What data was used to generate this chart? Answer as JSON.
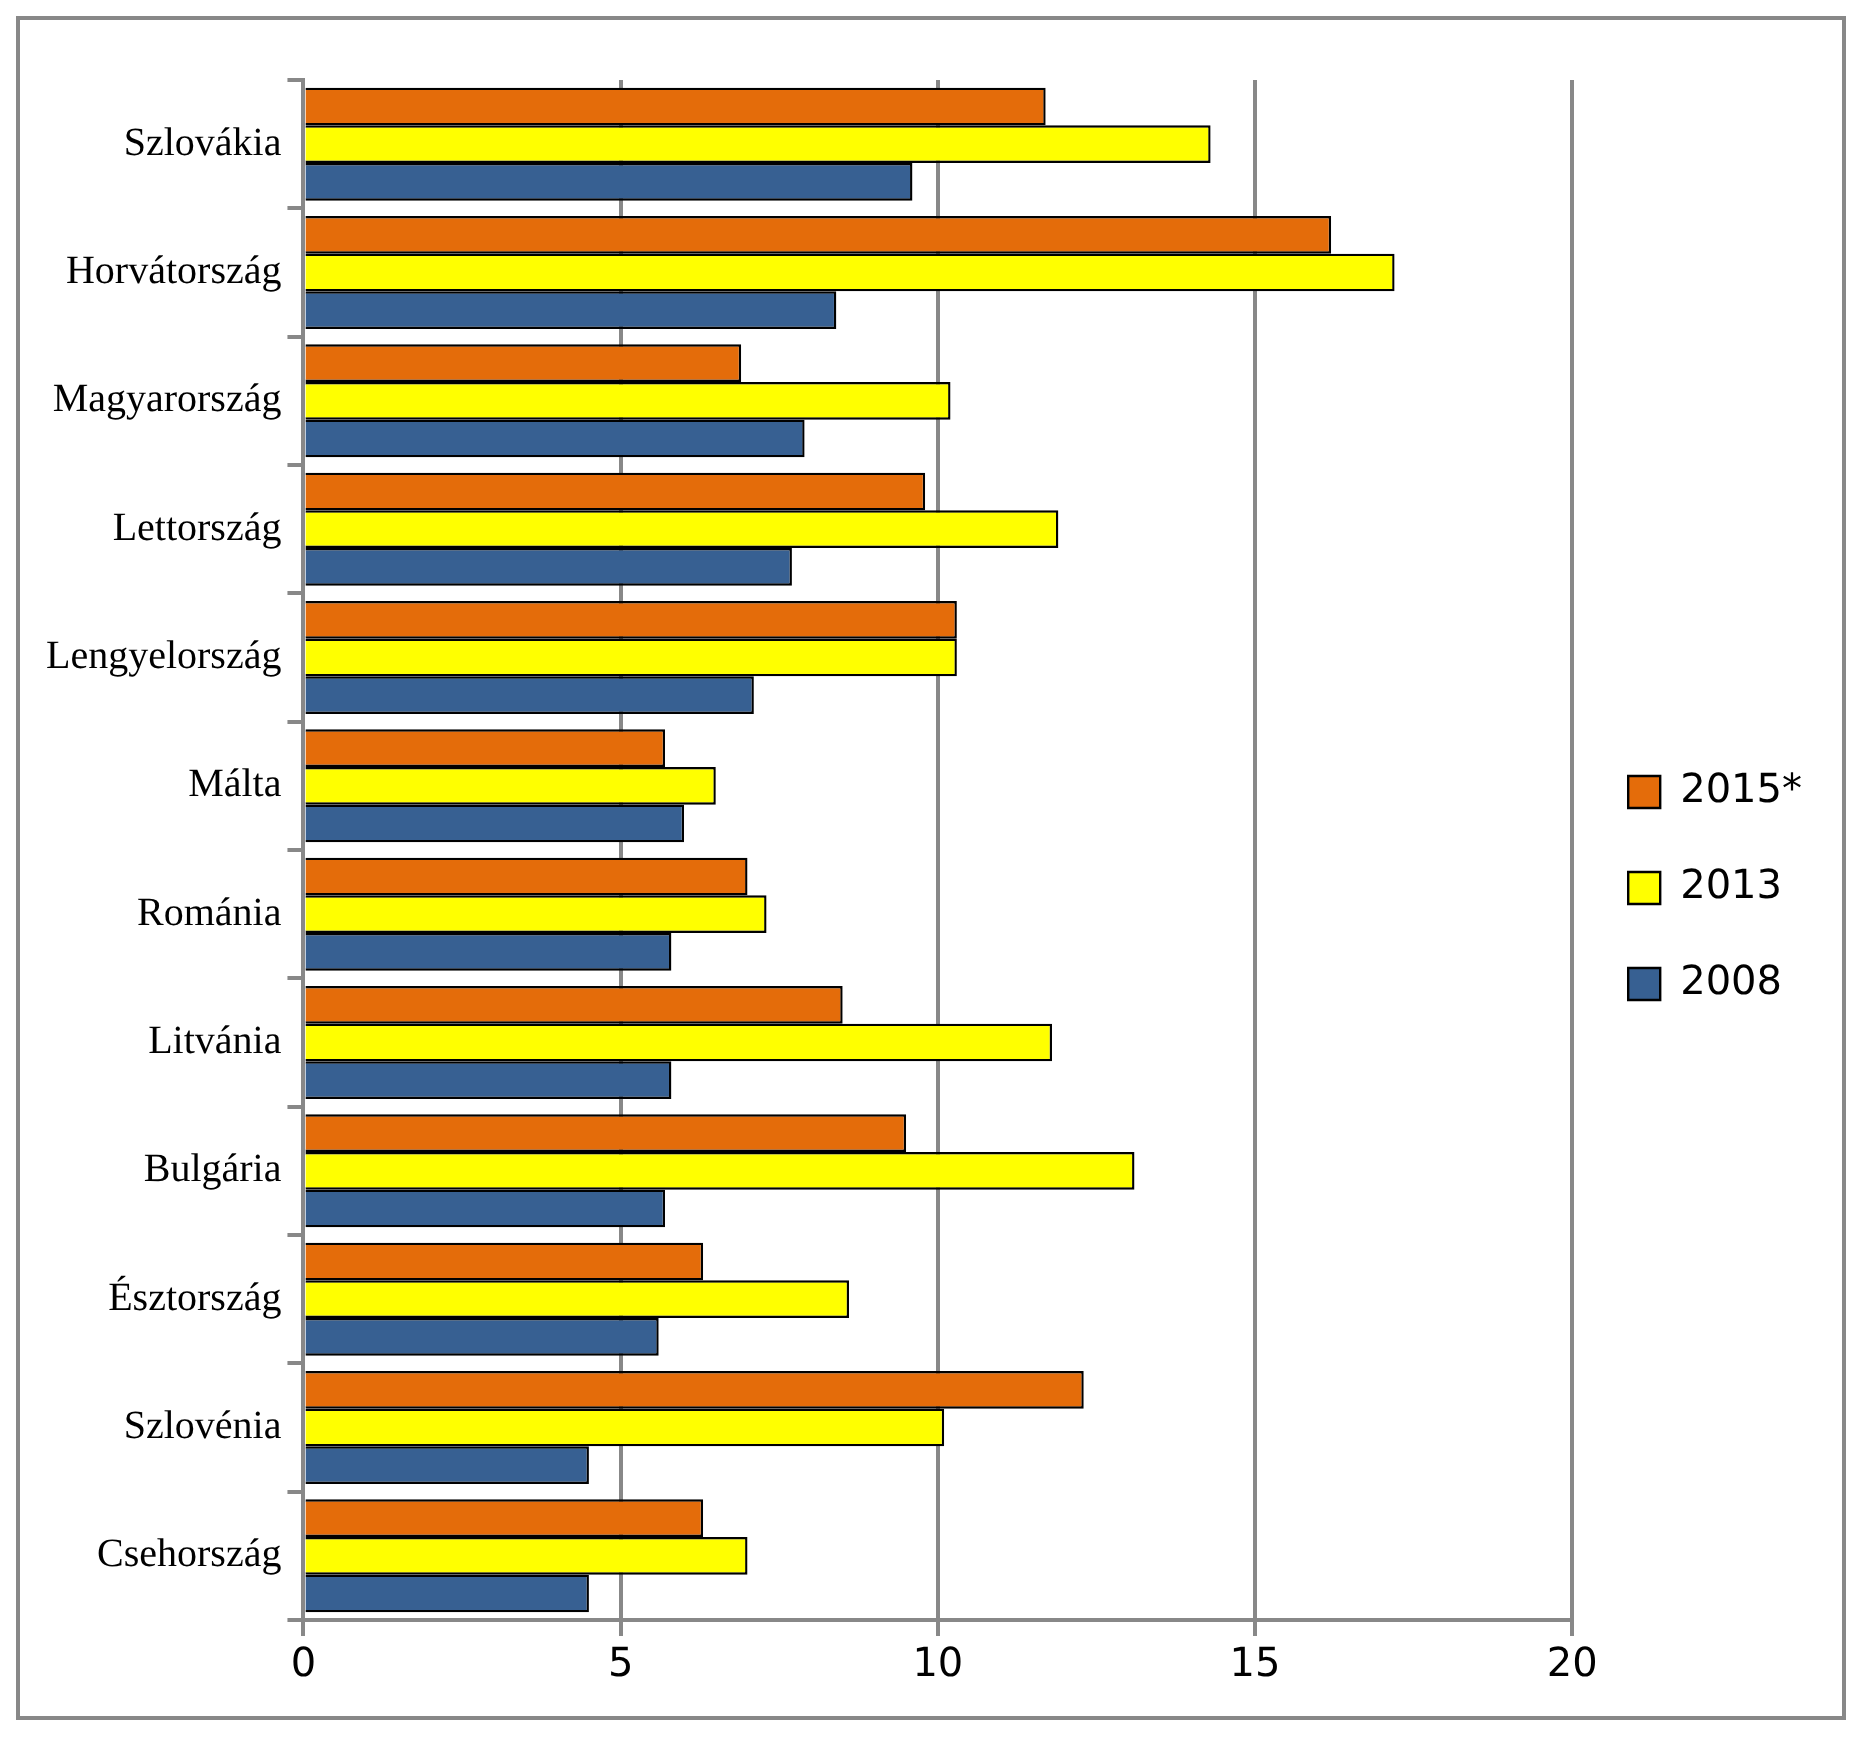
{
  "chart_data": {
    "type": "bar",
    "orientation": "horizontal",
    "categories": [
      "Szlovákia",
      "Horvátország",
      "Magyarország",
      "Lettország",
      "Lengyelország",
      "Málta",
      "Románia",
      "Litvánia",
      "Bulgária",
      "Észtország",
      "Szlovénia",
      "Csehország"
    ],
    "series": [
      {
        "name": "2015*",
        "color": "#e46c0a",
        "values": [
          11.7,
          16.2,
          6.9,
          9.8,
          10.3,
          5.7,
          7.0,
          8.5,
          9.5,
          6.3,
          12.3,
          6.3
        ]
      },
      {
        "name": "2013",
        "color": "#ffff00",
        "values": [
          14.3,
          17.2,
          10.2,
          11.9,
          10.3,
          6.5,
          7.3,
          11.8,
          13.1,
          8.6,
          10.1,
          7.0
        ]
      },
      {
        "name": "2008",
        "color": "#376092",
        "values": [
          9.6,
          8.4,
          7.9,
          7.7,
          7.1,
          6.0,
          5.8,
          5.8,
          5.7,
          5.6,
          4.5,
          4.5
        ]
      }
    ],
    "xlim": [
      0,
      20
    ],
    "xticks": [
      0,
      5,
      10,
      15,
      20
    ],
    "grid": "x",
    "legend": "right"
  }
}
